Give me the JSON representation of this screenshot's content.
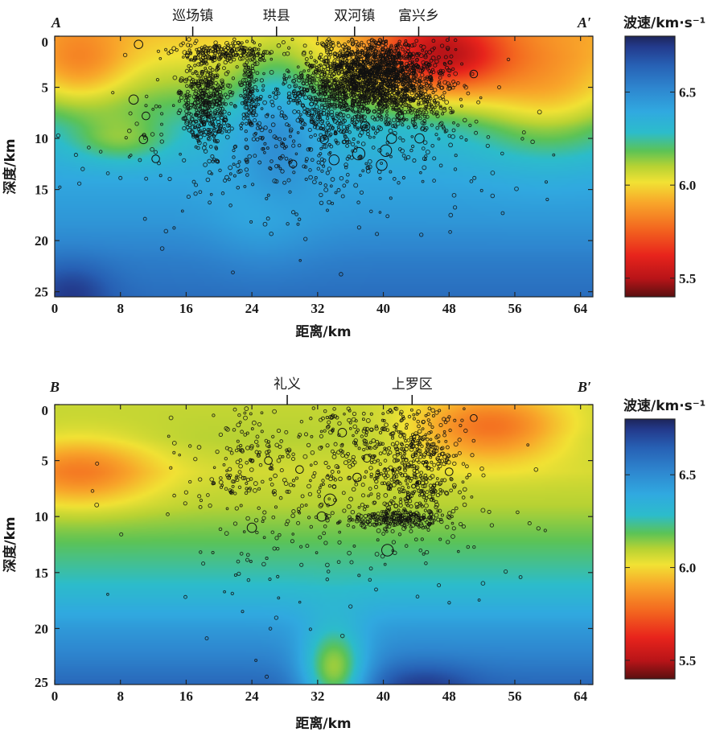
{
  "chart_data": [
    {
      "type": "heatmap",
      "id": "profile-A",
      "xlabel": "距离/km",
      "ylabel": "深度/km",
      "xlim": [
        0,
        65.5
      ],
      "ylim": [
        0,
        25.5
      ],
      "xticks": [
        0,
        8,
        16,
        24,
        32,
        40,
        48,
        56,
        64
      ],
      "yticks": [
        0,
        5,
        10,
        15,
        20,
        25
      ],
      "start_label": "A",
      "end_label": "A′",
      "places": [
        {
          "name": "巡场镇",
          "x": 16.8
        },
        {
          "name": "珙县",
          "x": 27.0
        },
        {
          "name": "双河镇",
          "x": 36.5
        },
        {
          "name": "富兴乡",
          "x": 44.3
        }
      ],
      "colorbar": {
        "title": "波速/km·s⁻¹",
        "ticks": [
          5.5,
          6.0,
          6.5
        ],
        "min": 5.4,
        "max": 6.8
      },
      "velocity_field": {
        "base": [
          [
            0,
            5.97
          ],
          [
            2,
            6.02
          ],
          [
            5,
            6.13
          ],
          [
            9,
            6.3
          ],
          [
            14,
            6.4
          ],
          [
            18,
            6.46
          ],
          [
            22,
            6.55
          ],
          [
            25.5,
            6.6
          ]
        ],
        "anomalies": [
          {
            "x": 47,
            "z": 2,
            "rx": 8,
            "rz": 4,
            "dv": -0.5
          },
          {
            "x": 3,
            "z": 3,
            "rx": 6,
            "rz": 4,
            "dv": -0.2
          },
          {
            "x": 8,
            "z": 10,
            "rx": 6,
            "rz": 2.5,
            "dv": -0.18
          },
          {
            "x": 60,
            "z": 6,
            "rx": 9,
            "rz": 6,
            "dv": -0.22
          },
          {
            "x": 27,
            "z": 8,
            "rx": 5,
            "rz": 9,
            "dv": 0.18
          },
          {
            "x": 26,
            "z": 18,
            "rx": 6,
            "rz": 5,
            "dv": -0.1
          },
          {
            "x": 2,
            "z": 25,
            "rx": 5,
            "rz": 3,
            "dv": 0.15
          }
        ]
      },
      "event_clusters": [
        {
          "x": 18.5,
          "z": 6.5,
          "sx": 1.5,
          "sz": 2.4,
          "n": 420
        },
        {
          "x": 23.8,
          "z": 4.8,
          "sx": 0.6,
          "sz": 2.6,
          "n": 140
        },
        {
          "x": 20.5,
          "z": 1.6,
          "sx": 3.0,
          "sz": 0.6,
          "n": 160
        },
        {
          "x": 39.0,
          "z": 4.0,
          "sx": 3.4,
          "sz": 2.0,
          "n": 1500
        },
        {
          "x": 33.0,
          "z": 6.0,
          "sx": 2.8,
          "sz": 3.0,
          "n": 420
        },
        {
          "x": 44.5,
          "z": 5.5,
          "sx": 2.5,
          "sz": 2.5,
          "n": 220
        },
        {
          "x": 30.0,
          "z": 10.0,
          "sx": 12.0,
          "sz": 4.5,
          "n": 420
        }
      ],
      "large_events": [
        {
          "x": 10.2,
          "z": 0.8,
          "m": 2.2
        },
        {
          "x": 9.6,
          "z": 6.2,
          "m": 2.4
        },
        {
          "x": 11.1,
          "z": 7.8,
          "m": 2.0
        },
        {
          "x": 12.3,
          "z": 12.0,
          "m": 2.0
        },
        {
          "x": 10.8,
          "z": 10.1,
          "m": 2.2
        },
        {
          "x": 37.0,
          "z": 11.5,
          "m": 3.2
        },
        {
          "x": 40.3,
          "z": 11.2,
          "m": 3.0
        },
        {
          "x": 41.0,
          "z": 10.0,
          "m": 2.6
        },
        {
          "x": 39.8,
          "z": 12.6,
          "m": 2.8
        },
        {
          "x": 34.0,
          "z": 12.1,
          "m": 2.6
        },
        {
          "x": 37.8,
          "z": 8.8,
          "m": 2.4
        },
        {
          "x": 44.4,
          "z": 10.0,
          "m": 2.4
        },
        {
          "x": 51.0,
          "z": 3.7,
          "m": 2.0
        },
        {
          "x": 32.8,
          "z": 10.1,
          "m": 2.2
        },
        {
          "x": 42.0,
          "z": 7.8,
          "m": 2.0
        },
        {
          "x": 29.0,
          "z": 12.5,
          "m": 2.0
        }
      ]
    },
    {
      "type": "heatmap",
      "id": "profile-B",
      "xlabel": "距离/km",
      "ylabel": "深度/km",
      "xlim": [
        0,
        65.5
      ],
      "ylim": [
        0,
        25
      ],
      "xticks": [
        0,
        8,
        16,
        24,
        32,
        40,
        48,
        56,
        64
      ],
      "yticks": [
        0,
        5,
        10,
        15,
        20,
        25
      ],
      "start_label": "B",
      "end_label": "B′",
      "places": [
        {
          "name": "礼义",
          "x": 28.3
        },
        {
          "name": "上罗区",
          "x": 43.5
        }
      ],
      "colorbar": {
        "title": "波速/km·s⁻¹",
        "ticks": [
          5.5,
          6.0,
          6.5
        ],
        "min": 5.4,
        "max": 6.8
      },
      "velocity_field": {
        "base": [
          [
            0,
            6.08
          ],
          [
            3,
            6.1
          ],
          [
            6,
            6.06
          ],
          [
            9,
            6.1
          ],
          [
            12,
            6.18
          ],
          [
            16,
            6.28
          ],
          [
            20,
            6.45
          ],
          [
            23,
            6.55
          ],
          [
            25,
            6.62
          ]
        ],
        "anomalies": [
          {
            "x": 3,
            "z": 6,
            "rx": 9,
            "rz": 3.0,
            "dv": -0.25
          },
          {
            "x": 53,
            "z": 2,
            "rx": 9,
            "rz": 3.0,
            "dv": -0.3
          },
          {
            "x": 34,
            "z": 24,
            "rx": 4,
            "rz": 4,
            "dv": -0.45
          },
          {
            "x": 45,
            "z": 25,
            "rx": 6,
            "rz": 2,
            "dv": 0.12
          }
        ]
      },
      "event_clusters": [
        {
          "x": 44.0,
          "z": 5.5,
          "sx": 3.0,
          "sz": 3.2,
          "n": 520
        },
        {
          "x": 42.0,
          "z": 10.3,
          "sx": 3.5,
          "sz": 0.4,
          "n": 180
        },
        {
          "x": 36.0,
          "z": 3.5,
          "sx": 2.5,
          "sz": 2.5,
          "n": 120
        },
        {
          "x": 24.0,
          "z": 5.5,
          "sx": 3.5,
          "sz": 3.0,
          "n": 160
        },
        {
          "x": 33.0,
          "z": 10.0,
          "sx": 12.0,
          "sz": 5.0,
          "n": 200
        }
      ],
      "large_events": [
        {
          "x": 24.0,
          "z": 11.0,
          "m": 2.4
        },
        {
          "x": 33.5,
          "z": 8.5,
          "m": 3.0
        },
        {
          "x": 40.5,
          "z": 13.0,
          "m": 3.0
        },
        {
          "x": 32.5,
          "z": 10.0,
          "m": 2.4
        },
        {
          "x": 26.0,
          "z": 5.0,
          "m": 2.0
        },
        {
          "x": 35.0,
          "z": 2.5,
          "m": 2.2
        },
        {
          "x": 36.8,
          "z": 6.5,
          "m": 2.2
        },
        {
          "x": 29.8,
          "z": 5.8,
          "m": 2.0
        },
        {
          "x": 38.0,
          "z": 4.8,
          "m": 2.0
        },
        {
          "x": 44.0,
          "z": 3.0,
          "m": 2.0
        },
        {
          "x": 48.0,
          "z": 6.0,
          "m": 2.0
        },
        {
          "x": 51.0,
          "z": 1.2,
          "m": 1.8
        }
      ]
    }
  ]
}
